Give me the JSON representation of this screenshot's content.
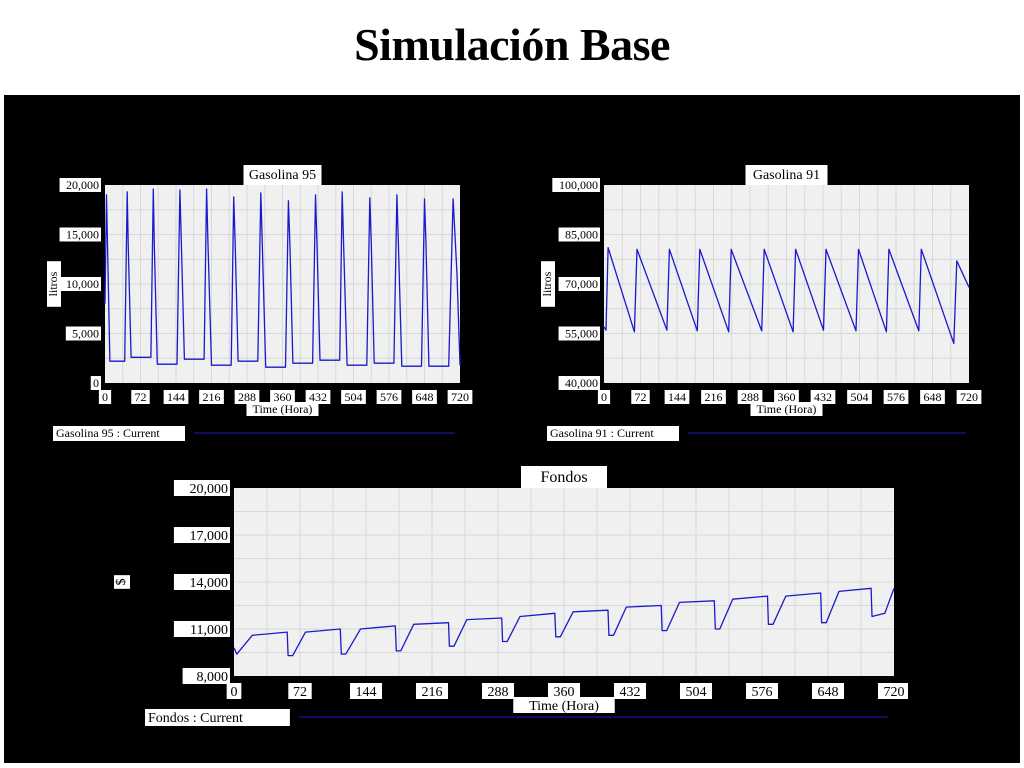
{
  "slide": {
    "title": "Simulación Base"
  },
  "colors": {
    "line": "#1a1acc",
    "plot_bg": "#f0f0f0",
    "panel_bg": "#000000",
    "grid": "#d8d8d8"
  },
  "chart_data": [
    {
      "id": "g95",
      "type": "line",
      "title": "Gasolina 95",
      "xlabel": "Time (Hora)",
      "ylabel": "litros",
      "xlim": [
        0,
        720
      ],
      "ylim": [
        0,
        20000
      ],
      "xticks": [
        "0",
        "72",
        "144",
        "216",
        "288",
        "360",
        "432",
        "504",
        "576",
        "648",
        "720"
      ],
      "yticks": [
        "0",
        "5,000",
        "10,000",
        "15,000",
        "20,000"
      ],
      "legend": "Gasolina 95 : Current",
      "series": [
        {
          "x": [
            0,
            3,
            5,
            10,
            40,
            45,
            47,
            53,
            93,
            98,
            100,
            106,
            146,
            152,
            155,
            161,
            201,
            206,
            209,
            216,
            256,
            261,
            264,
            270,
            310,
            316,
            319,
            326,
            366,
            372,
            375,
            381,
            421,
            427,
            430,
            436,
            476,
            481,
            484,
            491,
            531,
            537,
            540,
            546,
            586,
            592,
            595,
            602,
            642,
            648,
            651,
            657,
            697,
            706,
            714,
            720
          ],
          "y": [
            8000,
            19000,
            14000,
            2200,
            2200,
            19300,
            14000,
            2600,
            2600,
            19600,
            14000,
            1900,
            1900,
            19500,
            14000,
            2400,
            2400,
            19600,
            14000,
            1800,
            1800,
            18800,
            14000,
            2200,
            2200,
            19200,
            14000,
            1600,
            1600,
            18400,
            14000,
            2000,
            2000,
            19000,
            14000,
            2300,
            2300,
            19300,
            14000,
            1800,
            1800,
            18700,
            14000,
            2000,
            2000,
            19000,
            14000,
            1700,
            1700,
            18600,
            14000,
            1700,
            1700,
            18600,
            11000,
            1800
          ]
        }
      ]
    },
    {
      "id": "g91",
      "type": "line",
      "title": "Gasolina 91",
      "xlabel": "Time (Hora)",
      "ylabel": "litros",
      "xlim": [
        0,
        720
      ],
      "ylim": [
        40000,
        100000
      ],
      "xticks": [
        "0",
        "72",
        "144",
        "216",
        "288",
        "360",
        "432",
        "504",
        "576",
        "648",
        "720"
      ],
      "yticks": [
        "40,000",
        "55,000",
        "70,000",
        "85,000",
        "100,000"
      ],
      "legend": "Gasolina 91 : Current",
      "series": [
        {
          "x": [
            0,
            4,
            8,
            60,
            65,
            124,
            129,
            184,
            189,
            246,
            251,
            311,
            316,
            373,
            378,
            433,
            438,
            497,
            502,
            557,
            562,
            621,
            626,
            690,
            696,
            720
          ],
          "y": [
            57000,
            56000,
            81000,
            55500,
            80500,
            56000,
            80500,
            55800,
            80500,
            55500,
            80500,
            55800,
            80500,
            55500,
            80500,
            56000,
            80500,
            55800,
            80500,
            55500,
            80500,
            55800,
            80500,
            52000,
            77000,
            69000
          ]
        }
      ]
    },
    {
      "id": "fondos",
      "type": "line",
      "title": "Fondos",
      "xlabel": "Time (Hora)",
      "ylabel": "$",
      "xlim": [
        0,
        720
      ],
      "ylim": [
        8000,
        20000
      ],
      "xticks": [
        "0",
        "72",
        "144",
        "216",
        "288",
        "360",
        "432",
        "504",
        "576",
        "648",
        "720"
      ],
      "yticks": [
        "8,000",
        "11,000",
        "14,000",
        "17,000",
        "20,000"
      ],
      "legend": "Fondos : Current",
      "series": [
        {
          "x": [
            0,
            3,
            20,
            58,
            59,
            64,
            78,
            116,
            117,
            122,
            138,
            176,
            177,
            182,
            196,
            234,
            235,
            240,
            254,
            292,
            293,
            298,
            312,
            350,
            351,
            356,
            370,
            408,
            409,
            414,
            428,
            466,
            467,
            472,
            486,
            524,
            525,
            530,
            544,
            582,
            583,
            588,
            602,
            640,
            641,
            646,
            660,
            695,
            696,
            710,
            720
          ],
          "y": [
            9800,
            9400,
            10600,
            10800,
            9300,
            9300,
            10800,
            11000,
            9400,
            9400,
            11000,
            11200,
            9600,
            9600,
            11300,
            11400,
            9900,
            9900,
            11600,
            11700,
            10200,
            10200,
            11800,
            12000,
            10500,
            10500,
            12100,
            12200,
            10600,
            10600,
            12400,
            12500,
            10900,
            10900,
            12700,
            12800,
            11000,
            11000,
            12900,
            13100,
            11300,
            11300,
            13100,
            13300,
            11400,
            11400,
            13400,
            13600,
            11800,
            12000,
            13600
          ]
        }
      ]
    }
  ]
}
